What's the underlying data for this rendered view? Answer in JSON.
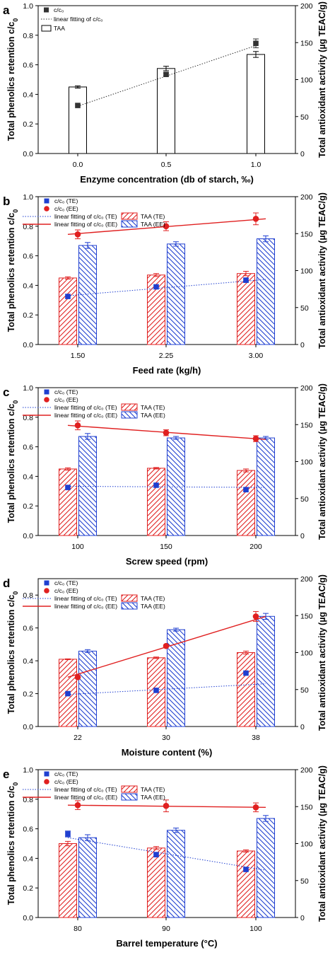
{
  "figure": {
    "left_axis_label": "Total phenolics retention c/c",
    "left_axis_sub": "0",
    "right_axis_label": "Total antioxidant activity (µg TEAC/g)"
  },
  "chart_data": [
    {
      "type": "bar",
      "panel": "a",
      "xlabel": "Enzyme concentration (db of starch, ‰)",
      "categories": [
        "0.0",
        "0.5",
        "1.0"
      ],
      "ylim_left": [
        0,
        1.0
      ],
      "yticks_left": [
        "0.0",
        "0.2",
        "0.4",
        "0.6",
        "0.8",
        "1.0"
      ],
      "ylim_right": [
        0,
        200
      ],
      "yticks_right": [
        "0",
        "50",
        "100",
        "150",
        "200"
      ],
      "legend": [
        "c/c₀",
        "linear fitting of c/c₀",
        "TAA"
      ],
      "series": [
        {
          "name": "c/c₀",
          "axis": "left",
          "kind": "points",
          "values": [
            0.325,
            0.535,
            0.745
          ],
          "errors": [
            0,
            0.01,
            0.03
          ],
          "color": "#333333",
          "marker": "square"
        },
        {
          "name": "linear fitting of c/c₀",
          "axis": "left",
          "kind": "fit",
          "from": 0.32,
          "to": 0.73,
          "color": "#333333",
          "style": "dotted"
        },
        {
          "name": "TAA",
          "axis": "right",
          "kind": "bar",
          "values": [
            90,
            115,
            134
          ],
          "errors": [
            1.5,
            3,
            4
          ],
          "color": "#000000",
          "pattern": "none"
        }
      ]
    },
    {
      "type": "bar",
      "panel": "b",
      "xlabel": "Feed rate (kg/h)",
      "categories": [
        "1.50",
        "2.25",
        "3.00"
      ],
      "ylim_left": [
        0,
        1.0
      ],
      "yticks_left": [
        "0.0",
        "0.2",
        "0.4",
        "0.6",
        "0.8",
        "1.0"
      ],
      "ylim_right": [
        0,
        200
      ],
      "yticks_right": [
        "0",
        "50",
        "100",
        "150",
        "200"
      ],
      "legend": [
        "c/c₀ (TE)",
        "c/c₀ (EE)",
        "linear fitting of c/c₀ (TE)",
        "linear fitting of c/c₀ (EE)",
        "TAA (TE)",
        "TAA (EE)"
      ],
      "series": [
        {
          "name": "c/c₀ (TE)",
          "axis": "left",
          "kind": "points",
          "values": [
            0.325,
            0.39,
            0.435
          ],
          "errors": [
            0,
            0,
            0.015
          ],
          "color": "#1f3fd0",
          "marker": "square"
        },
        {
          "name": "c/c₀ (EE)",
          "axis": "left",
          "kind": "points",
          "values": [
            0.745,
            0.8,
            0.85
          ],
          "errors": [
            0.03,
            0.03,
            0.04
          ],
          "color": "#e02020",
          "marker": "circle"
        },
        {
          "name": "linear fitting of c/c₀ (TE)",
          "axis": "left",
          "kind": "fit",
          "from": 0.33,
          "to": 0.44,
          "color": "#1f3fd0",
          "style": "dotted"
        },
        {
          "name": "linear fitting of c/c₀ (EE)",
          "axis": "left",
          "kind": "fit",
          "from": 0.745,
          "to": 0.85,
          "color": "#e02020",
          "style": "solid"
        },
        {
          "name": "TAA (TE)",
          "axis": "right",
          "kind": "bar",
          "values": [
            90,
            94,
            96
          ],
          "errors": [
            1.5,
            2,
            3
          ],
          "color": "#e02020",
          "pattern": "hatch-right"
        },
        {
          "name": "TAA (EE)",
          "axis": "right",
          "kind": "bar",
          "values": [
            134,
            136,
            143
          ],
          "errors": [
            4,
            3,
            4
          ],
          "color": "#1f3fd0",
          "pattern": "hatch-left"
        }
      ]
    },
    {
      "type": "bar",
      "panel": "c",
      "xlabel": "Screw speed (rpm)",
      "categories": [
        "100",
        "150",
        "200"
      ],
      "ylim_left": [
        0,
        1.0
      ],
      "yticks_left": [
        "0.0",
        "0.2",
        "0.4",
        "0.6",
        "0.8",
        "1.0"
      ],
      "ylim_right": [
        0,
        200
      ],
      "yticks_right": [
        "0",
        "50",
        "100",
        "150",
        "200"
      ],
      "legend": [
        "c/c₀ (TE)",
        "c/c₀ (EE)",
        "linear fitting of c/c₀ (TE)",
        "linear fitting of c/c₀ (EE)",
        "TAA (TE)",
        "TAA (EE)"
      ],
      "series": [
        {
          "name": "c/c₀ (TE)",
          "axis": "left",
          "kind": "points",
          "values": [
            0.325,
            0.34,
            0.31
          ],
          "errors": [
            0,
            0,
            0
          ],
          "color": "#1f3fd0",
          "marker": "square"
        },
        {
          "name": "c/c₀ (EE)",
          "axis": "left",
          "kind": "points",
          "values": [
            0.745,
            0.695,
            0.655
          ],
          "errors": [
            0.03,
            0.02,
            0.02
          ],
          "color": "#e02020",
          "marker": "circle"
        },
        {
          "name": "linear fitting of c/c₀ (TE)",
          "axis": "left",
          "kind": "fit",
          "from": 0.333,
          "to": 0.325,
          "color": "#1f3fd0",
          "style": "dotted"
        },
        {
          "name": "linear fitting of c/c₀ (EE)",
          "axis": "left",
          "kind": "fit",
          "from": 0.745,
          "to": 0.65,
          "color": "#e02020",
          "style": "solid"
        },
        {
          "name": "TAA (TE)",
          "axis": "right",
          "kind": "bar",
          "values": [
            90,
            91,
            88
          ],
          "errors": [
            1.5,
            1,
            2
          ],
          "color": "#e02020",
          "pattern": "hatch-right"
        },
        {
          "name": "TAA (EE)",
          "axis": "right",
          "kind": "bar",
          "values": [
            134,
            132,
            132
          ],
          "errors": [
            4,
            2,
            2
          ],
          "color": "#1f3fd0",
          "pattern": "hatch-left"
        }
      ]
    },
    {
      "type": "bar",
      "panel": "d",
      "xlabel": "Moisture content (%)",
      "categories": [
        "22",
        "30",
        "38"
      ],
      "ylim_left": [
        0,
        0.9
      ],
      "yticks_left": [
        "0.0",
        "0.2",
        "0.4",
        "0.6",
        "0.8"
      ],
      "ylim_right": [
        0,
        200
      ],
      "yticks_right": [
        "0",
        "50",
        "100",
        "150",
        "200"
      ],
      "legend": [
        "c/c₀ (TE)",
        "c/c₀ (EE)",
        "linear fitting of c/c₀ (TE)",
        "linear fitting of c/c₀ (EE)",
        "TAA (TE)",
        "TAA (EE)"
      ],
      "series": [
        {
          "name": "c/c₀ (TE)",
          "axis": "left",
          "kind": "points",
          "values": [
            0.2,
            0.22,
            0.325
          ],
          "errors": [
            0,
            0,
            0
          ],
          "color": "#1f3fd0",
          "marker": "square"
        },
        {
          "name": "c/c₀ (EE)",
          "axis": "left",
          "kind": "points",
          "values": [
            0.3,
            0.49,
            0.67
          ],
          "errors": [
            0,
            0,
            0.03
          ],
          "color": "#e02020",
          "marker": "circle"
        },
        {
          "name": "linear fitting of c/c₀ (TE)",
          "axis": "left",
          "kind": "fit",
          "from": 0.195,
          "to": 0.26,
          "color": "#1f3fd0",
          "style": "dotted"
        },
        {
          "name": "linear fitting of c/c₀ (EE)",
          "axis": "left",
          "kind": "fit",
          "from": 0.3,
          "to": 0.67,
          "color": "#e02020",
          "style": "solid"
        },
        {
          "name": "TAA (TE)",
          "axis": "right",
          "kind": "bar",
          "values": [
            91,
            93,
            100
          ],
          "errors": [
            0.5,
            1,
            2
          ],
          "color": "#e02020",
          "pattern": "hatch-right"
        },
        {
          "name": "TAA (EE)",
          "axis": "right",
          "kind": "bar",
          "values": [
            102,
            131,
            149
          ],
          "errors": [
            2,
            2,
            4
          ],
          "color": "#1f3fd0",
          "pattern": "hatch-left"
        }
      ]
    },
    {
      "type": "bar",
      "panel": "e",
      "xlabel": "Barrel temperature (°C)",
      "categories": [
        "80",
        "90",
        "100"
      ],
      "ylim_left": [
        0,
        1.0
      ],
      "yticks_left": [
        "0.0",
        "0.2",
        "0.4",
        "0.6",
        "0.8",
        "1.0"
      ],
      "ylim_right": [
        0,
        200
      ],
      "yticks_right": [
        "0",
        "50",
        "100",
        "150",
        "200"
      ],
      "legend": [
        "c/c₀ (TE)",
        "c/c₀ (EE)",
        "linear fitting of c/c₀ (TE)",
        "linear fitting of c/c₀ (EE)",
        "TAA (TE)",
        "TAA (EE)"
      ],
      "series": [
        {
          "name": "c/c₀ (TE)",
          "axis": "left",
          "kind": "points",
          "values": [
            0.565,
            0.425,
            0.325
          ],
          "errors": [
            0.02,
            0,
            0
          ],
          "color": "#1f3fd0",
          "marker": "square"
        },
        {
          "name": "c/c₀ (EE)",
          "axis": "left",
          "kind": "points",
          "values": [
            0.76,
            0.755,
            0.745
          ],
          "errors": [
            0.03,
            0.04,
            0.03
          ],
          "color": "#e02020",
          "marker": "circle"
        },
        {
          "name": "linear fitting of c/c₀ (TE)",
          "axis": "left",
          "kind": "fit",
          "from": 0.54,
          "to": 0.32,
          "color": "#1f3fd0",
          "style": "dotted"
        },
        {
          "name": "linear fitting of c/c₀ (EE)",
          "axis": "left",
          "kind": "fit",
          "from": 0.76,
          "to": 0.745,
          "color": "#e02020",
          "style": "solid"
        },
        {
          "name": "TAA (TE)",
          "axis": "right",
          "kind": "bar",
          "values": [
            100,
            94,
            90
          ],
          "errors": [
            3,
            2,
            1.5
          ],
          "color": "#e02020",
          "pattern": "hatch-right"
        },
        {
          "name": "TAA (EE)",
          "axis": "right",
          "kind": "bar",
          "values": [
            108,
            118,
            134
          ],
          "errors": [
            4,
            3,
            4
          ],
          "color": "#1f3fd0",
          "pattern": "hatch-left"
        }
      ]
    }
  ]
}
